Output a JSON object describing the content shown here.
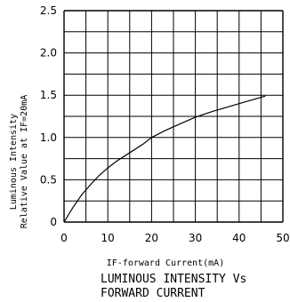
{
  "chart_data": {
    "type": "line",
    "title_lines": [
      "LUMINOUS INTENSITY Vs",
      "FORWARD CURRENT"
    ],
    "xlabel": "IF-forward Current(mA)",
    "ylabel_lines": [
      "Luminous Intensity",
      "Relative Value at IF=20mA"
    ],
    "xlim": [
      0,
      50
    ],
    "ylim": [
      0,
      2.5
    ],
    "x_ticks": [
      "0",
      "10",
      "20",
      "30",
      "40",
      "50"
    ],
    "y_ticks": [
      "0",
      "0.5",
      "1.0",
      "1.5",
      "2.0",
      "2.5"
    ],
    "grid": true,
    "series": [
      {
        "x": [
          0,
          2,
          4,
          6,
          8,
          10,
          12,
          15,
          18,
          20,
          23,
          26,
          30,
          34,
          38,
          42,
          46
        ],
        "y": [
          0,
          0.17,
          0.32,
          0.44,
          0.55,
          0.64,
          0.72,
          0.82,
          0.92,
          1.0,
          1.08,
          1.15,
          1.24,
          1.31,
          1.37,
          1.43,
          1.49
        ]
      }
    ],
    "colors": {
      "line": "#000000",
      "grid": "#000000"
    }
  }
}
